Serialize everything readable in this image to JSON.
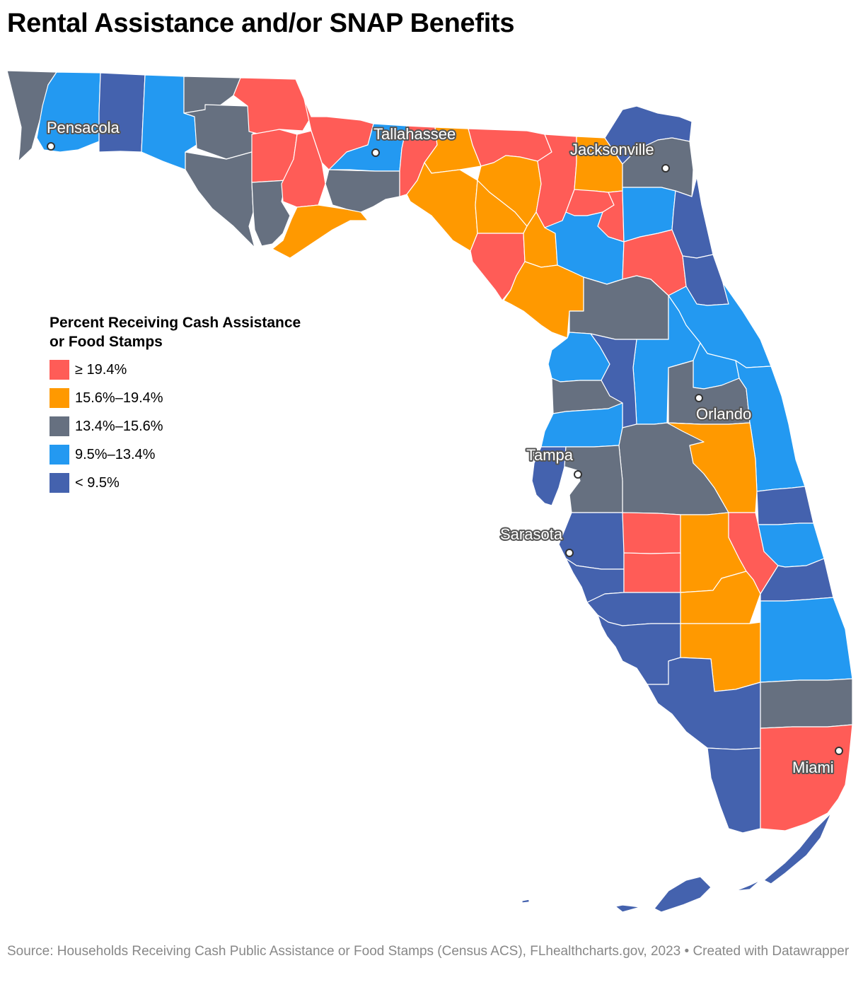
{
  "title": "Rental Assistance and/or SNAP Benefits",
  "legend": {
    "title_line1": "Percent Receiving Cash Assistance",
    "title_line2": "or Food Stamps",
    "items": [
      {
        "label": "≥ 19.4%",
        "color": "#ff5c57"
      },
      {
        "label": "15.6%–19.4%",
        "color": "#ff9900"
      },
      {
        "label": "13.4%–15.6%",
        "color": "#667080"
      },
      {
        "label": "9.5%–13.4%",
        "color": "#2399f1"
      },
      {
        "label": "< 9.5%",
        "color": "#4462ae"
      }
    ]
  },
  "cities": {
    "pensacola": "Pensacola",
    "tallahassee": "Tallahassee",
    "jacksonville": "Jacksonville",
    "orlando": "Orlando",
    "tampa": "Tampa",
    "sarasota": "Sarasota",
    "miami": "Miami"
  },
  "source": "Source: Households Receiving Cash Public Assistance or Food Stamps (Census ACS), FLhealthcharts.gov, 2023 • Created with Datawrapper"
}
